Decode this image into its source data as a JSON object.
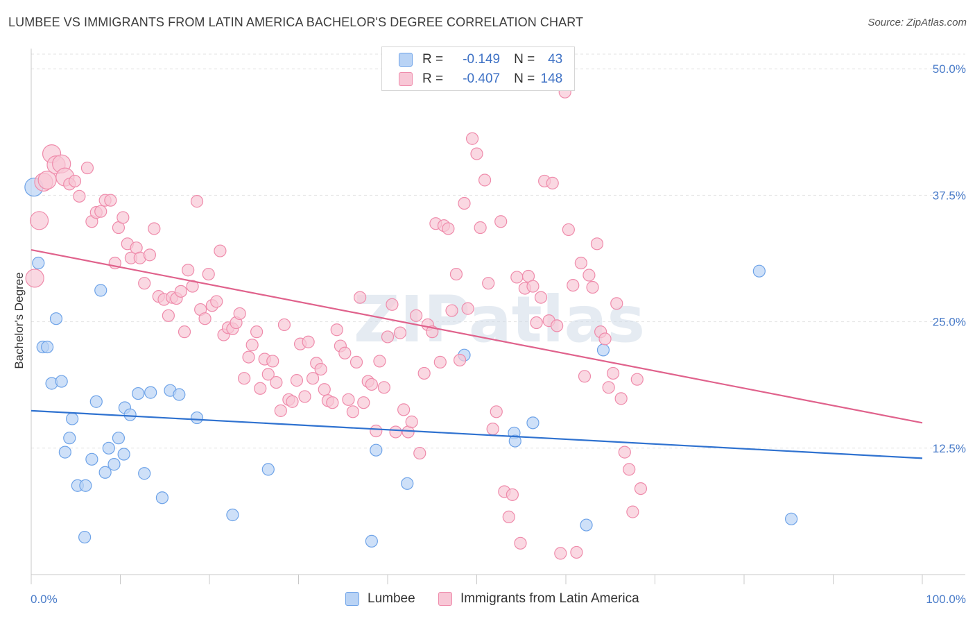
{
  "title": "LUMBEE VS IMMIGRANTS FROM LATIN AMERICA BACHELOR'S DEGREE CORRELATION CHART",
  "source": "Source: ZipAtlas.com",
  "watermark": "ZIPatlas",
  "legend": {
    "r_label": "R =",
    "n_label": "N =",
    "rows": [
      {
        "r": "-0.149",
        "n": "43"
      },
      {
        "r": "-0.407",
        "n": "148"
      }
    ]
  },
  "chart_data": {
    "type": "scatter",
    "title": "LUMBEE VS IMMIGRANTS FROM LATIN AMERICA BACHELOR'S DEGREE CORRELATION CHART",
    "xlabel": "",
    "ylabel": "Bachelor's Degree",
    "xlim": [
      0,
      100
    ],
    "ylim": [
      0,
      52
    ],
    "x_tick_labels": [
      "0.0%",
      "100.0%"
    ],
    "y_ticks": [
      12.5,
      25.0,
      37.5,
      50.0
    ],
    "y_tick_labels": [
      "12.5%",
      "25.0%",
      "37.5%",
      "50.0%"
    ],
    "grid": true,
    "legend_position": "top-center",
    "series": [
      {
        "name": "Lumbee",
        "color": "#6ea3e8",
        "fill": "#b9d3f5",
        "trend": {
          "x": [
            0,
            100
          ],
          "y": [
            16.2,
            11.5
          ],
          "color": "#2f72d0"
        },
        "points": [
          [
            0.3,
            38.3
          ],
          [
            0.8,
            30.8
          ],
          [
            1.3,
            22.5
          ],
          [
            1.8,
            22.5
          ],
          [
            2.3,
            18.9
          ],
          [
            2.8,
            25.3
          ],
          [
            3.4,
            19.1
          ],
          [
            3.8,
            12.1
          ],
          [
            4.3,
            13.5
          ],
          [
            4.6,
            15.4
          ],
          [
            5.2,
            8.8
          ],
          [
            6.1,
            8.8
          ],
          [
            6.0,
            3.7
          ],
          [
            6.8,
            11.4
          ],
          [
            7.3,
            17.1
          ],
          [
            7.8,
            28.1
          ],
          [
            8.3,
            10.1
          ],
          [
            8.7,
            12.5
          ],
          [
            9.3,
            10.9
          ],
          [
            9.8,
            13.5
          ],
          [
            10.4,
            11.9
          ],
          [
            10.5,
            16.5
          ],
          [
            11.1,
            15.8
          ],
          [
            12.0,
            17.9
          ],
          [
            12.7,
            10.0
          ],
          [
            13.4,
            18.0
          ],
          [
            14.7,
            7.6
          ],
          [
            15.6,
            18.2
          ],
          [
            16.6,
            17.8
          ],
          [
            18.6,
            15.5
          ],
          [
            22.6,
            5.9
          ],
          [
            26.6,
            10.4
          ],
          [
            38.2,
            3.3
          ],
          [
            38.7,
            12.3
          ],
          [
            42.2,
            9.0
          ],
          [
            48.6,
            21.7
          ],
          [
            54.2,
            14.0
          ],
          [
            54.3,
            13.2
          ],
          [
            56.3,
            15.0
          ],
          [
            62.3,
            4.9
          ],
          [
            64.2,
            22.2
          ],
          [
            81.7,
            30.0
          ],
          [
            85.3,
            5.5
          ]
        ]
      },
      {
        "name": "Immigrants from Latin America",
        "color": "#ef8bab",
        "fill": "#f8c7d6",
        "trend": {
          "x": [
            0,
            100
          ],
          "y": [
            32.1,
            15.0
          ],
          "color": "#e0628c"
        },
        "points": [
          [
            0.4,
            29.3
          ],
          [
            0.9,
            35.0
          ],
          [
            1.4,
            38.8
          ],
          [
            1.8,
            39.0
          ],
          [
            2.3,
            41.6
          ],
          [
            2.8,
            40.5
          ],
          [
            3.4,
            40.6
          ],
          [
            3.8,
            39.3
          ],
          [
            4.3,
            38.6
          ],
          [
            4.9,
            38.9
          ],
          [
            5.4,
            37.4
          ],
          [
            6.3,
            40.2
          ],
          [
            6.8,
            34.9
          ],
          [
            7.3,
            35.8
          ],
          [
            7.8,
            35.9
          ],
          [
            8.3,
            37.0
          ],
          [
            8.9,
            37.0
          ],
          [
            9.4,
            30.8
          ],
          [
            9.8,
            34.3
          ],
          [
            10.3,
            35.3
          ],
          [
            10.8,
            32.7
          ],
          [
            11.2,
            31.3
          ],
          [
            11.8,
            32.3
          ],
          [
            12.2,
            31.3
          ],
          [
            12.7,
            28.8
          ],
          [
            13.3,
            31.6
          ],
          [
            13.8,
            34.2
          ],
          [
            14.3,
            27.5
          ],
          [
            14.9,
            27.2
          ],
          [
            15.4,
            25.6
          ],
          [
            15.8,
            27.4
          ],
          [
            16.3,
            27.3
          ],
          [
            16.8,
            28.0
          ],
          [
            17.2,
            24.0
          ],
          [
            17.6,
            30.1
          ],
          [
            18.1,
            28.5
          ],
          [
            18.6,
            36.9
          ],
          [
            19.0,
            26.2
          ],
          [
            19.5,
            25.3
          ],
          [
            19.9,
            29.7
          ],
          [
            20.3,
            26.6
          ],
          [
            20.8,
            27.0
          ],
          [
            21.2,
            32.0
          ],
          [
            21.6,
            23.7
          ],
          [
            22.1,
            24.4
          ],
          [
            22.6,
            24.3
          ],
          [
            23.0,
            24.9
          ],
          [
            23.4,
            25.8
          ],
          [
            23.9,
            19.4
          ],
          [
            24.4,
            21.5
          ],
          [
            24.8,
            22.7
          ],
          [
            25.3,
            24.0
          ],
          [
            25.7,
            18.4
          ],
          [
            26.2,
            21.3
          ],
          [
            26.6,
            19.8
          ],
          [
            27.1,
            21.1
          ],
          [
            27.5,
            19.0
          ],
          [
            28.0,
            16.2
          ],
          [
            28.4,
            24.7
          ],
          [
            28.9,
            17.3
          ],
          [
            29.3,
            17.1
          ],
          [
            29.8,
            19.2
          ],
          [
            30.2,
            22.8
          ],
          [
            30.7,
            17.6
          ],
          [
            31.1,
            23.0
          ],
          [
            31.6,
            19.4
          ],
          [
            32.0,
            20.9
          ],
          [
            32.5,
            20.3
          ],
          [
            32.9,
            18.3
          ],
          [
            33.3,
            17.2
          ],
          [
            33.8,
            17.0
          ],
          [
            34.3,
            24.2
          ],
          [
            34.7,
            22.6
          ],
          [
            35.2,
            21.9
          ],
          [
            35.6,
            17.3
          ],
          [
            36.1,
            16.1
          ],
          [
            36.5,
            21.0
          ],
          [
            36.9,
            27.4
          ],
          [
            37.3,
            17.0
          ],
          [
            37.8,
            19.1
          ],
          [
            38.2,
            18.8
          ],
          [
            38.7,
            14.2
          ],
          [
            39.1,
            21.1
          ],
          [
            39.6,
            18.5
          ],
          [
            40.0,
            23.5
          ],
          [
            40.5,
            26.7
          ],
          [
            40.9,
            14.1
          ],
          [
            41.4,
            23.9
          ],
          [
            41.8,
            16.3
          ],
          [
            42.3,
            14.1
          ],
          [
            42.7,
            15.1
          ],
          [
            43.2,
            25.6
          ],
          [
            43.6,
            12.0
          ],
          [
            44.1,
            19.9
          ],
          [
            44.5,
            24.7
          ],
          [
            45.0,
            24.0
          ],
          [
            45.4,
            34.7
          ],
          [
            45.9,
            21.0
          ],
          [
            46.3,
            34.5
          ],
          [
            46.8,
            34.2
          ],
          [
            47.2,
            26.1
          ],
          [
            47.7,
            29.7
          ],
          [
            48.1,
            21.2
          ],
          [
            48.6,
            36.7
          ],
          [
            49.0,
            26.3
          ],
          [
            49.5,
            43.1
          ],
          [
            50.0,
            41.6
          ],
          [
            50.4,
            34.3
          ],
          [
            50.9,
            39.0
          ],
          [
            51.3,
            28.8
          ],
          [
            51.8,
            14.4
          ],
          [
            52.2,
            16.1
          ],
          [
            52.7,
            34.9
          ],
          [
            53.1,
            8.2
          ],
          [
            53.6,
            5.7
          ],
          [
            54.0,
            7.9
          ],
          [
            54.5,
            29.4
          ],
          [
            54.9,
            3.1
          ],
          [
            55.4,
            28.3
          ],
          [
            55.8,
            29.5
          ],
          [
            56.3,
            28.5
          ],
          [
            56.7,
            24.9
          ],
          [
            57.2,
            27.4
          ],
          [
            57.6,
            38.9
          ],
          [
            58.1,
            25.1
          ],
          [
            58.5,
            38.7
          ],
          [
            59.0,
            24.6
          ],
          [
            59.4,
            2.1
          ],
          [
            59.9,
            47.7
          ],
          [
            60.3,
            34.1
          ],
          [
            60.8,
            28.6
          ],
          [
            61.2,
            2.2
          ],
          [
            61.7,
            30.8
          ],
          [
            62.1,
            19.6
          ],
          [
            62.6,
            29.6
          ],
          [
            63.0,
            28.4
          ],
          [
            63.5,
            32.7
          ],
          [
            63.9,
            24.0
          ],
          [
            64.4,
            23.3
          ],
          [
            64.8,
            18.5
          ],
          [
            65.3,
            19.9
          ],
          [
            65.7,
            26.8
          ],
          [
            66.2,
            17.4
          ],
          [
            66.6,
            12.1
          ],
          [
            67.1,
            10.4
          ],
          [
            67.5,
            6.2
          ],
          [
            68.0,
            19.3
          ],
          [
            68.4,
            8.5
          ]
        ]
      }
    ]
  }
}
